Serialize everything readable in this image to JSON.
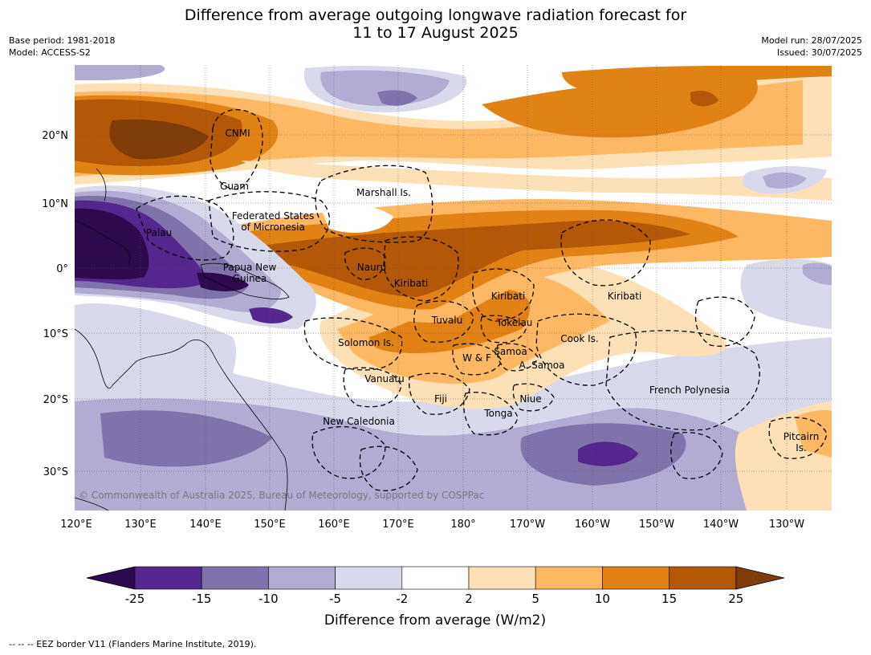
{
  "title": {
    "line1": "Difference from average outgoing longwave radiation forecast for",
    "line2": "11 to 17 August 2025"
  },
  "meta": {
    "base_period": "Base period: 1981-2018",
    "model": "Model: ACCESS-S2",
    "model_run": "Model run: 28/07/2025",
    "issued": "Issued: 30/07/2025"
  },
  "map": {
    "lon_ticks": [
      "120°E",
      "130°E",
      "140°E",
      "150°E",
      "160°E",
      "170°E",
      "180°",
      "170°W",
      "160°W",
      "150°W",
      "140°W",
      "130°W"
    ],
    "lat_ticks": [
      "20°N",
      "10°N",
      "0°",
      "10°S",
      "20°S",
      "30°S"
    ],
    "places": [
      {
        "name": "CNMI"
      },
      {
        "name": "Guam"
      },
      {
        "name": "Marshall Is."
      },
      {
        "name": "Federated States"
      },
      {
        "name": "of Micronesia"
      },
      {
        "name": "Palau"
      },
      {
        "name": "Papua New"
      },
      {
        "name": "Guinea"
      },
      {
        "name": "Nauru"
      },
      {
        "name": "Kiribati"
      },
      {
        "name": "Kiribati"
      },
      {
        "name": "Kiribati"
      },
      {
        "name": "Tuvalu"
      },
      {
        "name": "Tokelau"
      },
      {
        "name": "Solomon Is."
      },
      {
        "name": "Samoa"
      },
      {
        "name": "W & F"
      },
      {
        "name": "A. Samoa"
      },
      {
        "name": "Cook Is."
      },
      {
        "name": "Vanuatu"
      },
      {
        "name": "Fiji"
      },
      {
        "name": "Niue"
      },
      {
        "name": "Tonga"
      },
      {
        "name": "French Polynesia"
      },
      {
        "name": "New Caledonia"
      },
      {
        "name": "Pitcairn"
      },
      {
        "name": "Is."
      }
    ],
    "copyright": "© Commonwealth of Australia 2025, Bureau of Meteorology, supported by COSPPac"
  },
  "colorbar": {
    "ticks": [
      "-25",
      "-15",
      "-10",
      "-5",
      "-2",
      "2",
      "5",
      "10",
      "15",
      "25"
    ],
    "colors": [
      "#2d0a4e",
      "#54278f",
      "#8073ac",
      "#b2abd2",
      "#d8daeb",
      "#ffffff",
      "#fee0b6",
      "#fdb863",
      "#e08214",
      "#b35806",
      "#7f3b08"
    ],
    "title": "Difference from average (W/m2)"
  },
  "footnote": "--  --  -- EEZ border V11 (Flanders Marine Institute, 2019)."
}
